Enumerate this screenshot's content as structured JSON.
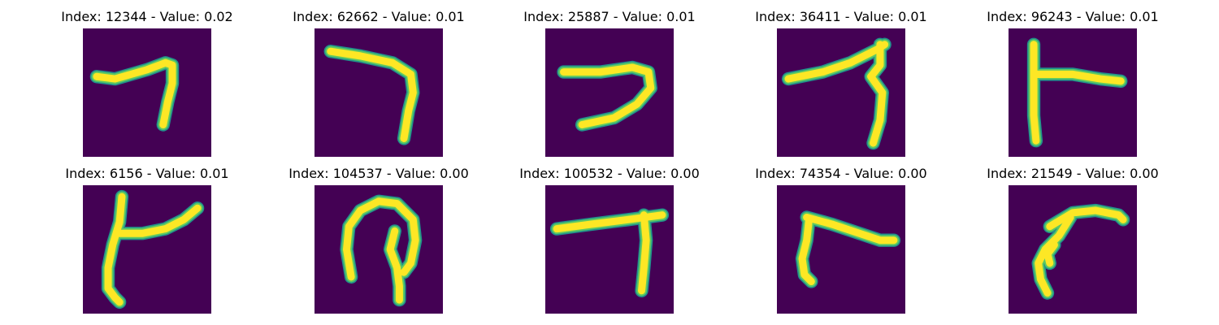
{
  "colors": {
    "background": "#440154",
    "stroke_core": "#fde725",
    "stroke_mid": "#5ec962",
    "stroke_edge": "#21918c"
  },
  "panels": [
    {
      "title": "Index: 12344 - Value: 0.02",
      "index": 12344,
      "value": 0.02
    },
    {
      "title": "Index: 62662 - Value: 0.01",
      "index": 62662,
      "value": 0.01
    },
    {
      "title": "Index: 25887 - Value: 0.01",
      "index": 25887,
      "value": 0.01
    },
    {
      "title": "Index: 36411 - Value: 0.01",
      "index": 36411,
      "value": 0.01
    },
    {
      "title": "Index: 96243 - Value: 0.01",
      "index": 96243,
      "value": 0.01
    },
    {
      "title": "Index: 6156 - Value: 0.01",
      "index": 6156,
      "value": 0.01
    },
    {
      "title": "Index: 104537 - Value: 0.00",
      "index": 104537,
      "value": 0.0
    },
    {
      "title": "Index: 100532 - Value: 0.00",
      "index": 100532,
      "value": 0.0
    },
    {
      "title": "Index: 74354 - Value: 0.00",
      "index": 74354,
      "value": 0.0
    },
    {
      "title": "Index: 21549 - Value: 0.00",
      "index": 21549,
      "value": 0.0
    }
  ]
}
